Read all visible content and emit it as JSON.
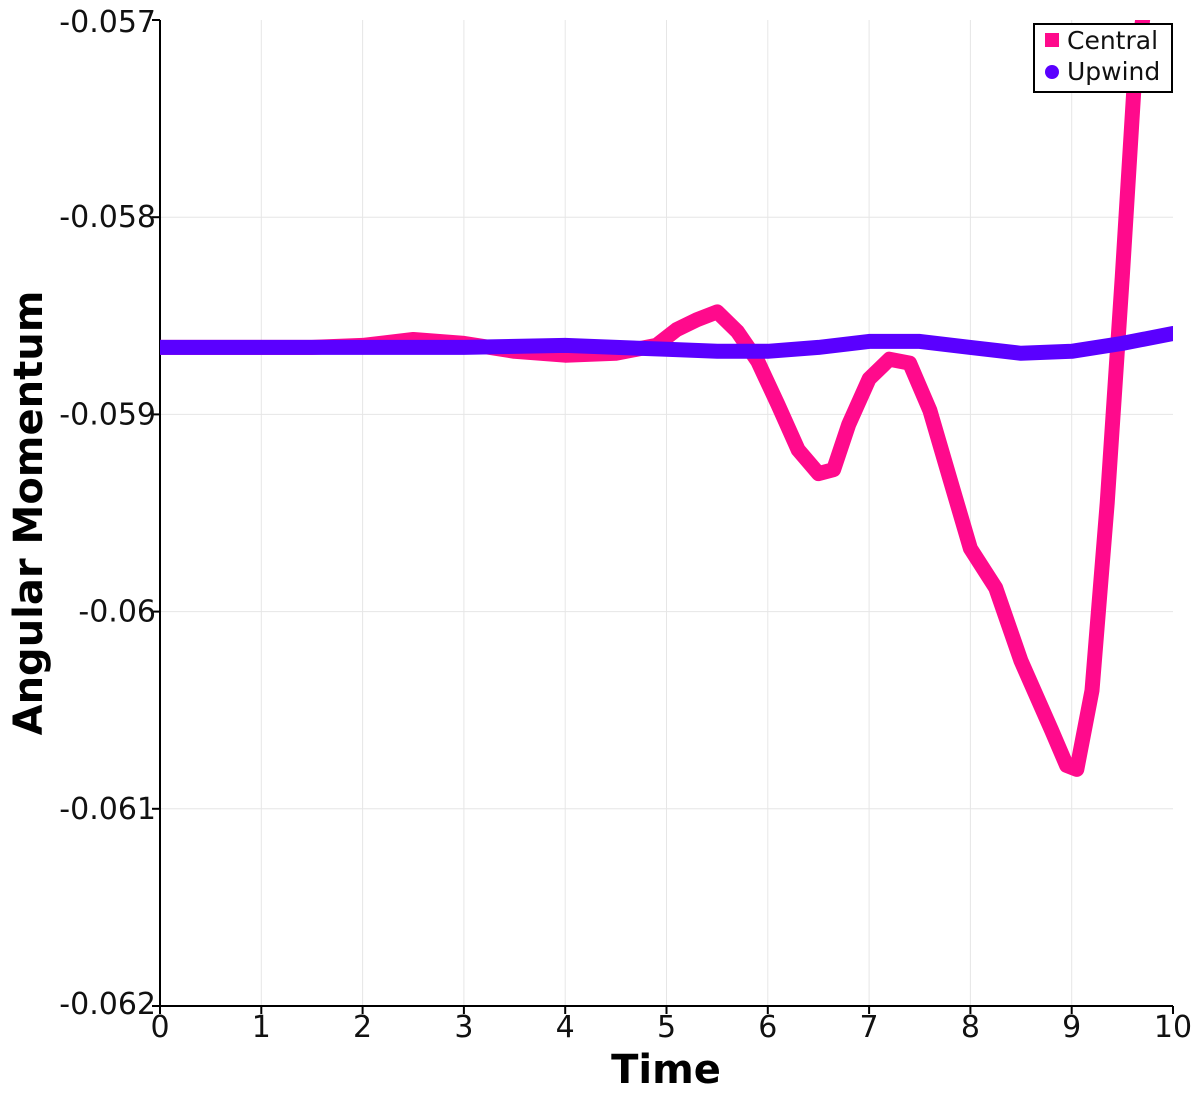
{
  "chart_data": {
    "type": "line",
    "title": "",
    "xlabel": "Time",
    "ylabel": "Angular Momentum",
    "xlim": [
      0,
      10
    ],
    "ylim": [
      -0.062,
      -0.057
    ],
    "x_ticks": [
      "0",
      "1",
      "2",
      "3",
      "4",
      "5",
      "6",
      "7",
      "8",
      "9",
      "10"
    ],
    "y_ticks": [
      "-0.057",
      "-0.058",
      "-0.059",
      "-0.06",
      "-0.061",
      "-0.062"
    ],
    "grid": true,
    "legend_position": "top-right",
    "series": [
      {
        "name": "Central",
        "color": "#ff0a8c",
        "marker": "square",
        "points": [
          [
            0,
            -0.05866
          ],
          [
            0.5,
            -0.05866
          ],
          [
            1,
            -0.05866
          ],
          [
            1.5,
            -0.05866
          ],
          [
            2,
            -0.05865
          ],
          [
            2.5,
            -0.05862
          ],
          [
            3,
            -0.05864
          ],
          [
            3.5,
            -0.05868
          ],
          [
            4,
            -0.0587
          ],
          [
            4.5,
            -0.05869
          ],
          [
            4.9,
            -0.05865
          ],
          [
            5.1,
            -0.05857
          ],
          [
            5.3,
            -0.05852
          ],
          [
            5.5,
            -0.05848
          ],
          [
            5.7,
            -0.05858
          ],
          [
            5.9,
            -0.05873
          ],
          [
            6.1,
            -0.05895
          ],
          [
            6.3,
            -0.05918
          ],
          [
            6.5,
            -0.0593
          ],
          [
            6.65,
            -0.05928
          ],
          [
            6.8,
            -0.05905
          ],
          [
            7.0,
            -0.05882
          ],
          [
            7.2,
            -0.05872
          ],
          [
            7.4,
            -0.05874
          ],
          [
            7.6,
            -0.05898
          ],
          [
            7.8,
            -0.05933
          ],
          [
            8.0,
            -0.05968
          ],
          [
            8.25,
            -0.05988
          ],
          [
            8.5,
            -0.06025
          ],
          [
            8.8,
            -0.0606
          ],
          [
            8.95,
            -0.06078
          ],
          [
            9.05,
            -0.0608
          ],
          [
            9.2,
            -0.0604
          ],
          [
            9.35,
            -0.05945
          ],
          [
            9.5,
            -0.0583
          ],
          [
            9.62,
            -0.0573
          ],
          [
            9.7,
            -0.057
          ]
        ]
      },
      {
        "name": "Upwind",
        "color": "#5a00ff",
        "marker": "circle",
        "points": [
          [
            0,
            -0.05866
          ],
          [
            1,
            -0.05866
          ],
          [
            2,
            -0.05866
          ],
          [
            3,
            -0.05866
          ],
          [
            4,
            -0.05865
          ],
          [
            5,
            -0.05867
          ],
          [
            5.5,
            -0.05868
          ],
          [
            6,
            -0.05868
          ],
          [
            6.5,
            -0.05866
          ],
          [
            7,
            -0.05863
          ],
          [
            7.5,
            -0.05863
          ],
          [
            8,
            -0.05866
          ],
          [
            8.5,
            -0.05869
          ],
          [
            9,
            -0.05868
          ],
          [
            9.5,
            -0.05864
          ],
          [
            10,
            -0.05859
          ]
        ]
      }
    ]
  }
}
